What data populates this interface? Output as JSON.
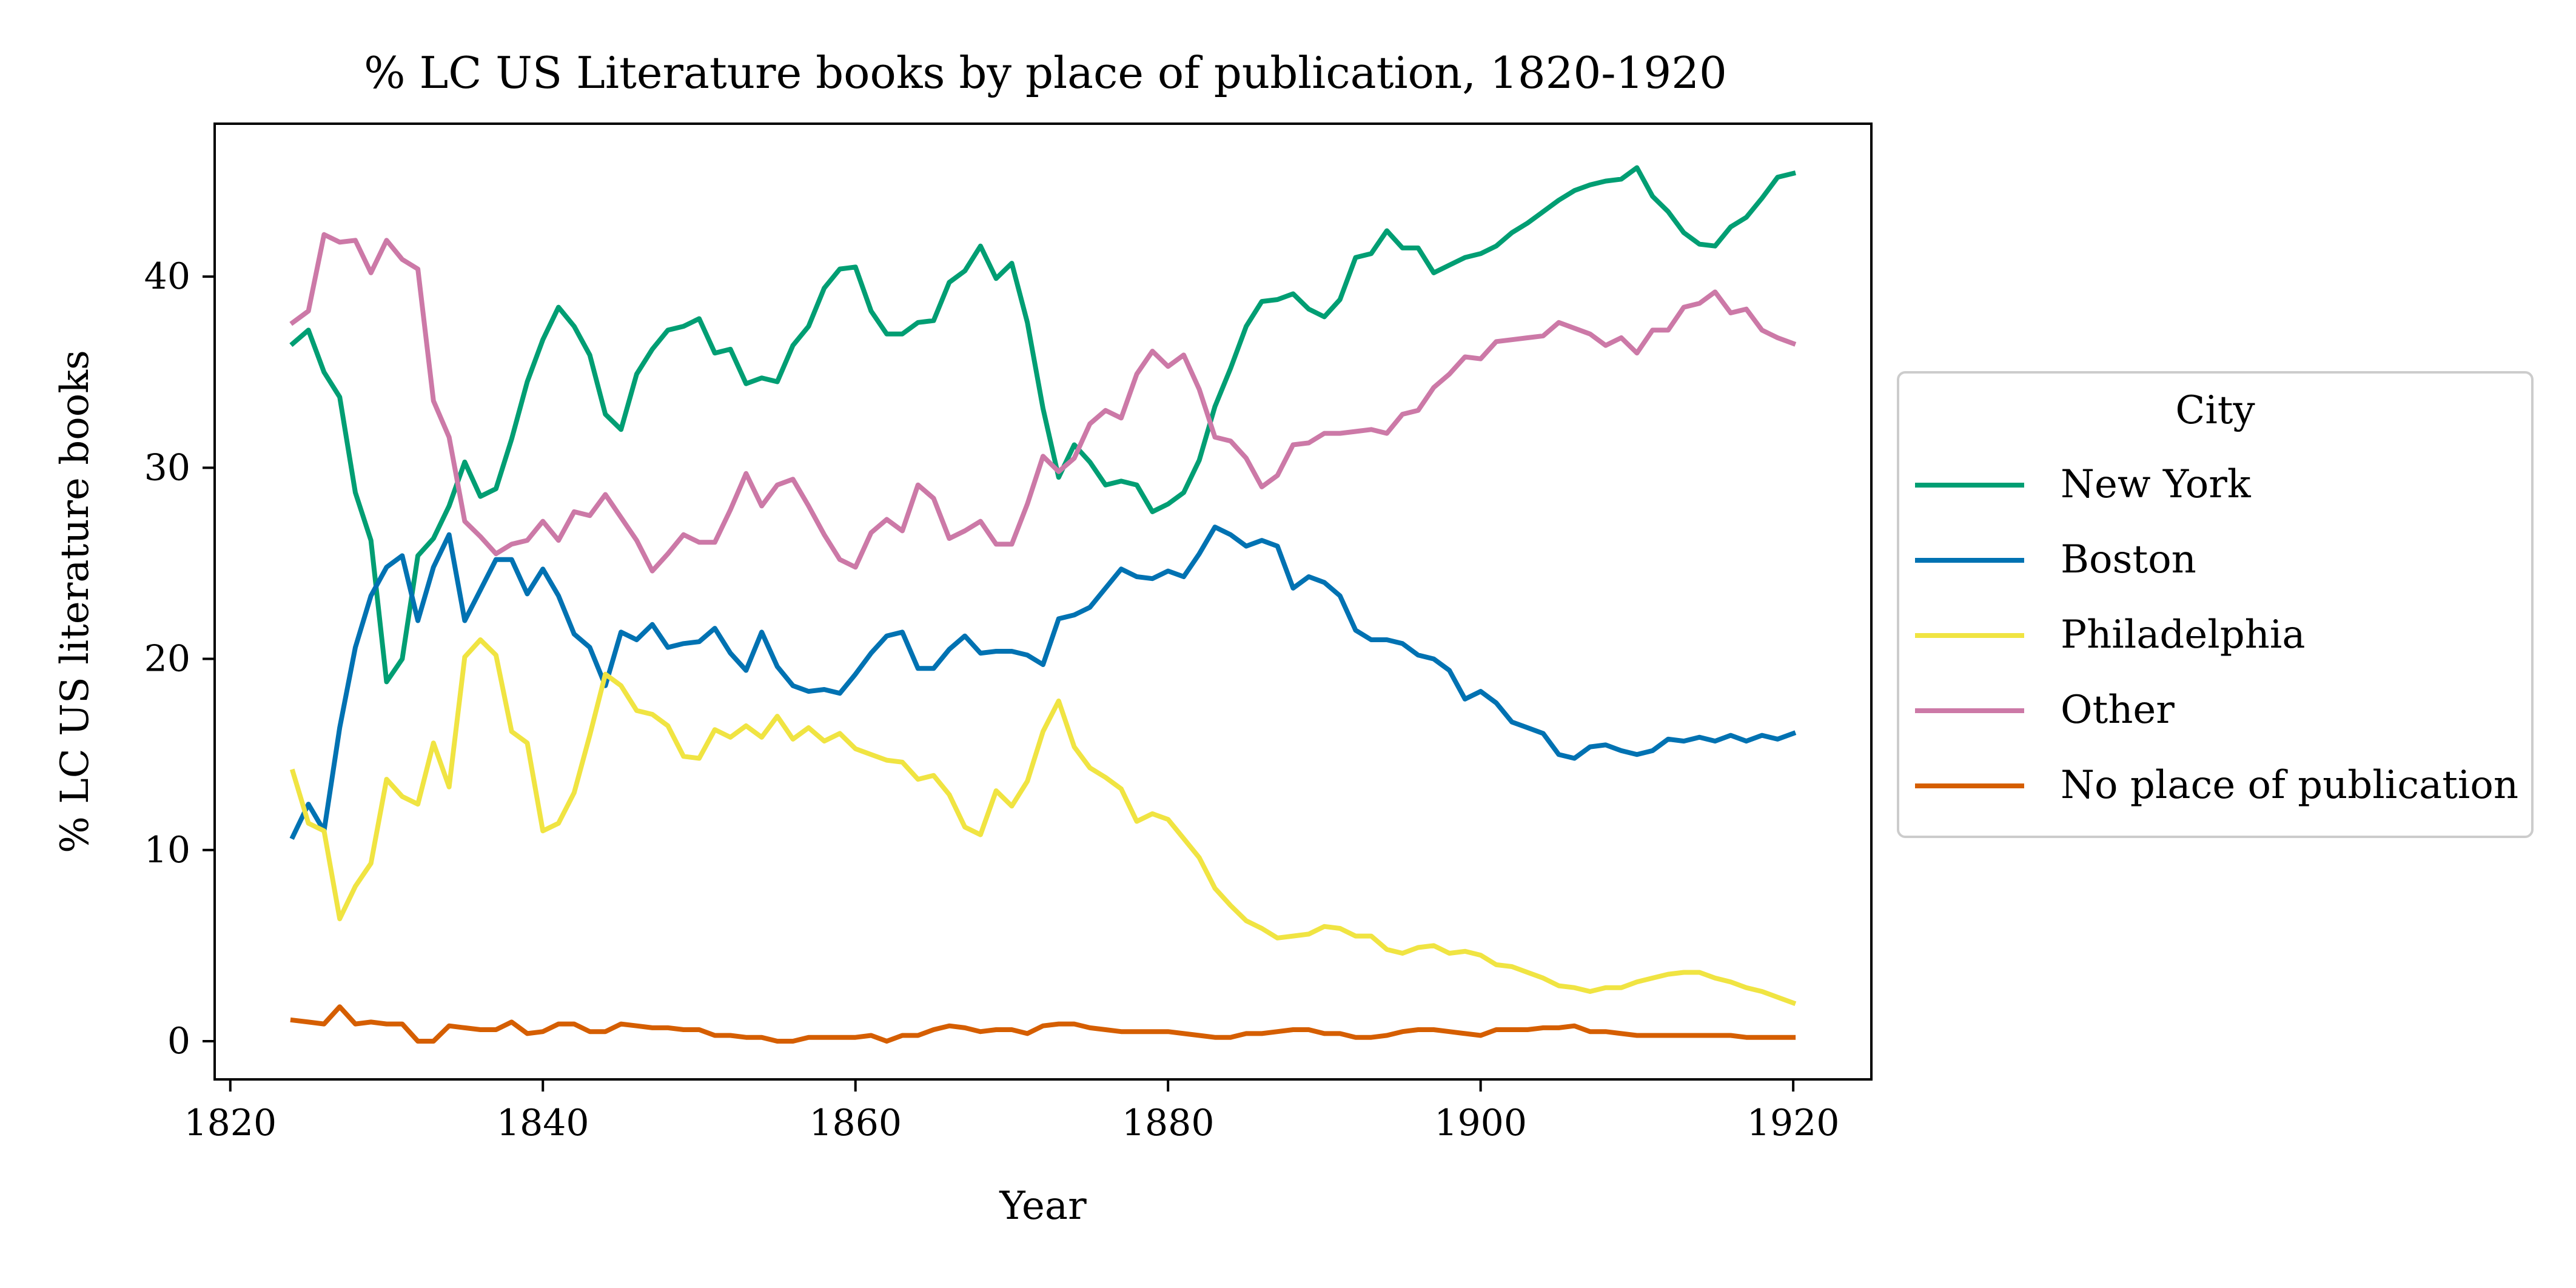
{
  "chart_data": {
    "type": "line",
    "title": "% LC US Literature books by place of publication, 1820-1920",
    "xlabel": "Year",
    "ylabel": "% LC US literature books",
    "xlim": [
      1819,
      1925
    ],
    "ylim": [
      -2,
      48
    ],
    "xticks": [
      1820,
      1840,
      1860,
      1880,
      1900,
      1920
    ],
    "yticks": [
      0,
      10,
      20,
      30,
      40
    ],
    "grid": false,
    "legend": {
      "title": "City",
      "placement": "outside-right"
    },
    "x": [
      1824,
      1825,
      1826,
      1827,
      1828,
      1829,
      1830,
      1831,
      1832,
      1833,
      1834,
      1835,
      1836,
      1837,
      1838,
      1839,
      1840,
      1841,
      1842,
      1843,
      1844,
      1845,
      1846,
      1847,
      1848,
      1849,
      1850,
      1851,
      1852,
      1853,
      1854,
      1855,
      1856,
      1857,
      1858,
      1859,
      1860,
      1861,
      1862,
      1863,
      1864,
      1865,
      1866,
      1867,
      1868,
      1869,
      1870,
      1871,
      1872,
      1873,
      1874,
      1875,
      1876,
      1877,
      1878,
      1879,
      1880,
      1881,
      1882,
      1883,
      1884,
      1885,
      1886,
      1887,
      1888,
      1889,
      1890,
      1891,
      1892,
      1893,
      1894,
      1895,
      1896,
      1897,
      1898,
      1899,
      1900,
      1901,
      1902,
      1903,
      1904,
      1905,
      1906,
      1907,
      1908,
      1909,
      1910,
      1911,
      1912,
      1913,
      1914,
      1915,
      1916,
      1917,
      1918,
      1919,
      1920
    ],
    "series": [
      {
        "name": "New York",
        "color": "#009E73",
        "values": [
          36.5,
          37.2,
          35.0,
          33.7,
          28.7,
          26.2,
          18.8,
          20.0,
          25.4,
          26.3,
          28.0,
          30.3,
          28.5,
          28.9,
          31.5,
          34.5,
          36.7,
          38.4,
          37.4,
          35.9,
          32.8,
          32.0,
          34.9,
          36.2,
          37.2,
          37.4,
          37.8,
          36.0,
          36.2,
          34.4,
          34.7,
          34.5,
          36.4,
          37.4,
          39.4,
          40.4,
          40.5,
          38.2,
          37.0,
          37.0,
          37.6,
          37.7,
          39.7,
          40.3,
          41.6,
          39.9,
          40.7,
          37.6,
          33.1,
          29.5,
          31.2,
          30.3,
          29.1,
          29.3,
          29.1,
          27.7,
          28.1,
          28.7,
          30.4,
          33.2,
          35.2,
          37.4,
          38.7,
          38.8,
          39.1,
          38.3,
          37.9,
          38.8,
          41.0,
          41.2,
          42.4,
          41.5,
          41.5,
          40.2,
          40.6,
          41.0,
          41.2,
          41.6,
          42.3,
          42.8,
          43.4,
          44.0,
          44.5,
          44.8,
          45.0,
          45.1,
          45.7,
          44.2,
          43.4,
          42.3,
          41.7,
          41.6,
          42.6,
          43.1,
          44.1,
          45.2,
          45.4
        ]
      },
      {
        "name": "Boston",
        "color": "#0072B2",
        "values": [
          10.7,
          12.4,
          11.0,
          16.4,
          20.6,
          23.3,
          24.8,
          25.4,
          22.0,
          24.8,
          26.5,
          22.0,
          23.6,
          25.2,
          25.2,
          23.4,
          24.7,
          23.3,
          21.3,
          20.6,
          18.6,
          21.4,
          21.0,
          21.8,
          20.6,
          20.8,
          20.9,
          21.6,
          20.3,
          19.4,
          21.4,
          19.6,
          18.6,
          18.3,
          18.4,
          18.2,
          19.2,
          20.3,
          21.2,
          21.4,
          19.5,
          19.5,
          20.5,
          21.2,
          20.3,
          20.4,
          20.4,
          20.2,
          19.7,
          22.1,
          22.3,
          22.7,
          23.7,
          24.7,
          24.3,
          24.2,
          24.6,
          24.3,
          25.5,
          26.9,
          26.5,
          25.9,
          26.2,
          25.9,
          23.7,
          24.3,
          24.0,
          23.3,
          21.5,
          21.0,
          21.0,
          20.8,
          20.2,
          20.0,
          19.4,
          17.9,
          18.3,
          17.7,
          16.7,
          16.4,
          16.1,
          15.0,
          14.8,
          15.4,
          15.5,
          15.2,
          15.0,
          15.2,
          15.8,
          15.7,
          15.9,
          15.7,
          16.0,
          15.7,
          16.0,
          15.8,
          16.1
        ]
      },
      {
        "name": "Philadelphia",
        "color": "#F0E442",
        "values": [
          14.1,
          11.4,
          11.0,
          6.4,
          8.1,
          9.3,
          13.7,
          12.8,
          12.4,
          15.6,
          13.3,
          20.1,
          21.0,
          20.2,
          16.2,
          15.6,
          11.0,
          11.4,
          13.0,
          16.0,
          19.2,
          18.6,
          17.3,
          17.1,
          16.5,
          14.9,
          14.8,
          16.3,
          15.9,
          16.5,
          15.9,
          17.0,
          15.8,
          16.4,
          15.7,
          16.1,
          15.3,
          15.0,
          14.7,
          14.6,
          13.7,
          13.9,
          12.9,
          11.2,
          10.8,
          13.1,
          12.3,
          13.6,
          16.2,
          17.8,
          15.4,
          14.3,
          13.8,
          13.2,
          11.5,
          11.9,
          11.6,
          10.6,
          9.6,
          8.0,
          7.1,
          6.3,
          5.9,
          5.4,
          5.5,
          5.6,
          6.0,
          5.9,
          5.5,
          5.5,
          4.8,
          4.6,
          4.9,
          5.0,
          4.6,
          4.7,
          4.5,
          4.0,
          3.9,
          3.6,
          3.3,
          2.9,
          2.8,
          2.6,
          2.8,
          2.8,
          3.1,
          3.3,
          3.5,
          3.6,
          3.6,
          3.3,
          3.1,
          2.8,
          2.6,
          2.3,
          2.0
        ]
      },
      {
        "name": "Other",
        "color": "#CC79A7",
        "values": [
          37.6,
          38.2,
          42.2,
          41.8,
          41.9,
          40.2,
          41.9,
          40.9,
          40.4,
          33.5,
          31.6,
          27.2,
          26.4,
          25.5,
          26.0,
          26.2,
          27.2,
          26.2,
          27.7,
          27.5,
          28.6,
          27.4,
          26.2,
          24.6,
          25.5,
          26.5,
          26.1,
          26.1,
          27.8,
          29.7,
          28.0,
          29.1,
          29.4,
          28.0,
          26.5,
          25.2,
          24.8,
          26.6,
          27.3,
          26.7,
          29.1,
          28.4,
          26.3,
          26.7,
          27.2,
          26.0,
          26.0,
          28.1,
          30.6,
          29.8,
          30.5,
          32.3,
          33.0,
          32.6,
          34.9,
          36.1,
          35.3,
          35.9,
          34.1,
          31.6,
          31.4,
          30.5,
          29.0,
          29.6,
          31.2,
          31.3,
          31.8,
          31.8,
          31.9,
          32.0,
          31.8,
          32.8,
          33.0,
          34.2,
          34.9,
          35.8,
          35.7,
          36.6,
          36.7,
          36.8,
          36.9,
          37.6,
          37.3,
          37.0,
          36.4,
          36.8,
          36.0,
          37.2,
          37.2,
          38.4,
          38.6,
          39.2,
          38.1,
          38.3,
          37.2,
          36.8,
          36.5
        ]
      },
      {
        "name": "No place of publication",
        "color": "#D55E00",
        "values": [
          1.1,
          1.0,
          0.9,
          1.8,
          0.9,
          1.0,
          0.9,
          0.9,
          0.0,
          0.0,
          0.8,
          0.7,
          0.6,
          0.6,
          1.0,
          0.4,
          0.5,
          0.9,
          0.9,
          0.5,
          0.5,
          0.9,
          0.8,
          0.7,
          0.7,
          0.6,
          0.6,
          0.3,
          0.3,
          0.2,
          0.2,
          0.0,
          0.0,
          0.2,
          0.2,
          0.2,
          0.2,
          0.3,
          0.0,
          0.3,
          0.3,
          0.6,
          0.8,
          0.7,
          0.5,
          0.6,
          0.6,
          0.4,
          0.8,
          0.9,
          0.9,
          0.7,
          0.6,
          0.5,
          0.5,
          0.5,
          0.5,
          0.4,
          0.3,
          0.2,
          0.2,
          0.4,
          0.4,
          0.5,
          0.6,
          0.6,
          0.4,
          0.4,
          0.2,
          0.2,
          0.3,
          0.5,
          0.6,
          0.6,
          0.5,
          0.4,
          0.3,
          0.6,
          0.6,
          0.6,
          0.7,
          0.7,
          0.8,
          0.5,
          0.5,
          0.4,
          0.3,
          0.3,
          0.3,
          0.3,
          0.3,
          0.3,
          0.3,
          0.2,
          0.2,
          0.2,
          0.2
        ]
      }
    ]
  }
}
